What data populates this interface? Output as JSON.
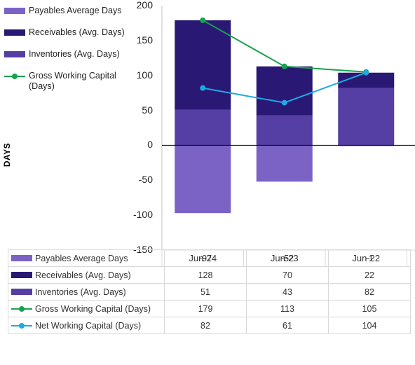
{
  "chart_data": {
    "type": "bar",
    "stacked": true,
    "categories": [
      "Jun-24",
      "Jun-23",
      "Jun-22"
    ],
    "ylabel": "DAYS",
    "ylim": [
      -150,
      200
    ],
    "yticks": [
      "200",
      "150",
      "100",
      "50",
      "0",
      "-50",
      "-100",
      "-150"
    ],
    "series": [
      {
        "name": "Payables Average Days",
        "kind": "bar",
        "color": "#7b63c6",
        "values": [
          -97,
          -52,
          -1
        ]
      },
      {
        "name": "Receivables (Avg. Days)",
        "kind": "bar",
        "color": "#2a1875",
        "values": [
          128,
          70,
          22
        ]
      },
      {
        "name": "Inventories (Avg. Days)",
        "kind": "bar",
        "color": "#553fa4",
        "values": [
          51,
          43,
          82
        ]
      },
      {
        "name": "Gross Working Capital (Days)",
        "kind": "line",
        "color": "#17a24e",
        "values": [
          179,
          113,
          105
        ]
      },
      {
        "name": "Net Working Capital (Days)",
        "kind": "line",
        "color": "#1daae2",
        "values": [
          82,
          61,
          104
        ]
      }
    ],
    "legend": {
      "position": "top-left",
      "items": [
        "Payables Average Days",
        "Receivables (Avg. Days)",
        "Inventories (Avg. Days)",
        "Gross Working Capital (Days)"
      ],
      "display_items": [
        "Payables Average Days",
        "Receivables (Avg. Days)",
        "Inventories (Avg. Days)",
        "Gross Working Capital\n(Days)"
      ]
    },
    "table": {
      "rows": [
        {
          "label": "Payables Average Days",
          "values": [
            "-97",
            "-52",
            "-1"
          ]
        },
        {
          "label": "Receivables (Avg. Days)",
          "values": [
            "128",
            "70",
            "22"
          ]
        },
        {
          "label": "Inventories (Avg. Days)",
          "values": [
            "51",
            "43",
            "82"
          ]
        },
        {
          "label": "Gross Working Capital (Days)",
          "values": [
            "179",
            "113",
            "105"
          ]
        },
        {
          "label": "Net Working Capital (Days)",
          "values": [
            "82",
            "61",
            "104"
          ]
        }
      ]
    },
    "grid": false
  }
}
